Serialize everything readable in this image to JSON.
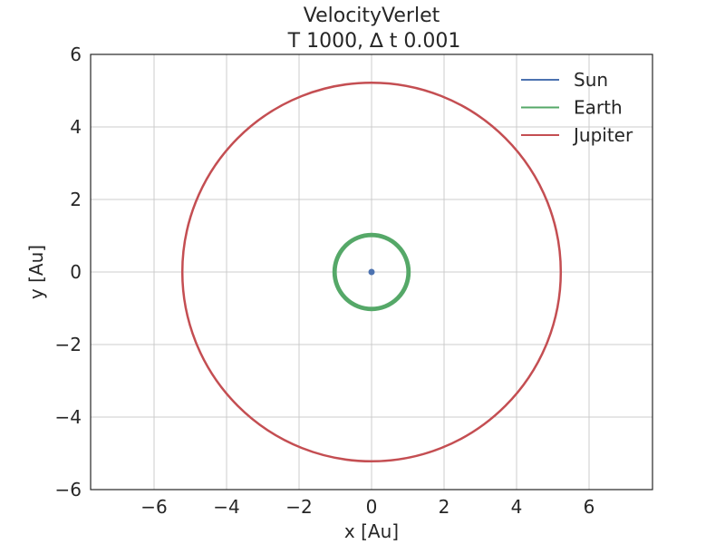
{
  "chart_data": {
    "type": "line",
    "title_line1": "VelocityVerlet",
    "title_line2": "T 1000, ∆ t 0.001",
    "xlabel": "x [Au]",
    "ylabel": "y [Au]",
    "xlim": [
      -7.75,
      7.75
    ],
    "ylim": [
      -6,
      6
    ],
    "xticks": [
      -6,
      -4,
      -2,
      0,
      2,
      4,
      6
    ],
    "yticks": [
      -6,
      -4,
      -2,
      0,
      2,
      4,
      6
    ],
    "xtick_labels": [
      "−6",
      "−4",
      "−2",
      "0",
      "2",
      "4",
      "6"
    ],
    "ytick_labels": [
      "−6",
      "−4",
      "−2",
      "0",
      "2",
      "4",
      "6"
    ],
    "grid": true,
    "legend_position": "top-right",
    "series": [
      {
        "name": "Sun",
        "color": "#4c72b0",
        "orbit_radius": 0.0,
        "marker_radius": 0.06,
        "linewidth_band": 0
      },
      {
        "name": "Earth",
        "color": "#55a868",
        "orbit_radius": 1.0,
        "band": [
          0.96,
          1.08
        ]
      },
      {
        "name": "Jupiter",
        "color": "#c44e52",
        "orbit_radius": 5.22,
        "band": [
          5.2,
          5.24
        ]
      }
    ]
  }
}
